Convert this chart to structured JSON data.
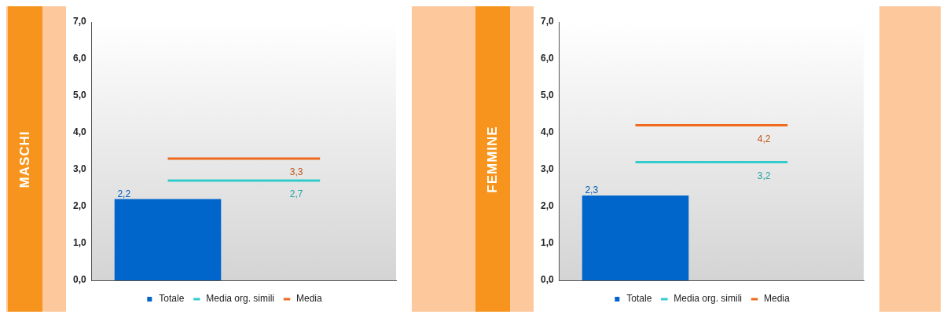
{
  "chart_data": [
    {
      "type": "bar",
      "title": "MASCHI",
      "categories": [
        null,
        null
      ],
      "series": [
        {
          "name": "Totale",
          "color": "#0066cc",
          "values": [
            2.2,
            null
          ],
          "value_labels": [
            "2,2",
            null
          ]
        },
        {
          "name": "Media org. simili",
          "type": "line",
          "color": "#33cccc",
          "values": [
            2.7,
            2.7
          ],
          "value_labels": [
            null,
            "2,7"
          ]
        },
        {
          "name": "Media",
          "type": "line",
          "color": "#f06a1e",
          "values": [
            3.3,
            3.3
          ],
          "value_labels": [
            null,
            "3,3"
          ]
        }
      ],
      "ylim": [
        0,
        7
      ],
      "yticks": [
        {
          "value": 0,
          "label": "0,0"
        },
        {
          "value": 1,
          "label": "1,0"
        },
        {
          "value": 2,
          "label": "2,0"
        },
        {
          "value": 3,
          "label": "3,0"
        },
        {
          "value": 4,
          "label": "4,0"
        },
        {
          "value": 5,
          "label": "5,0"
        },
        {
          "value": 6,
          "label": "6,0"
        },
        {
          "value": 7,
          "label": "7,0"
        }
      ],
      "tick_labels": "y",
      "legend": "bottom"
    },
    {
      "type": "bar",
      "title": "FEMMINE",
      "categories": [
        null,
        null
      ],
      "series": [
        {
          "name": "Totale",
          "color": "#0066cc",
          "values": [
            2.3,
            null
          ],
          "value_labels": [
            "2,3",
            null
          ]
        },
        {
          "name": "Media org. simili",
          "type": "line",
          "color": "#33cccc",
          "values": [
            3.2,
            3.2
          ],
          "value_labels": [
            null,
            "3,2"
          ]
        },
        {
          "name": "Media",
          "type": "line",
          "color": "#f06a1e",
          "values": [
            4.2,
            4.2
          ],
          "value_labels": [
            null,
            "4,2"
          ]
        }
      ],
      "ylim": [
        0,
        7
      ],
      "yticks": [
        {
          "value": 0,
          "label": "0,0"
        },
        {
          "value": 1,
          "label": "1,0"
        },
        {
          "value": 2,
          "label": "2,0"
        },
        {
          "value": 3,
          "label": "3,0"
        },
        {
          "value": 4,
          "label": "4,0"
        },
        {
          "value": 5,
          "label": "5,0"
        },
        {
          "value": 6,
          "label": "6,0"
        },
        {
          "value": 7,
          "label": "7,0"
        }
      ],
      "tick_labels": "y",
      "legend": "bottom"
    }
  ]
}
